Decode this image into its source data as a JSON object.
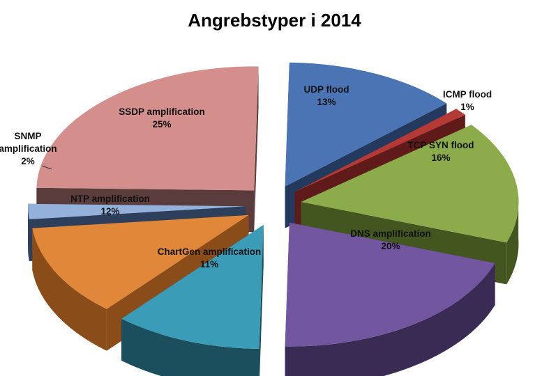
{
  "chart_data": {
    "type": "pie",
    "title": "Angrebstyper i 2014",
    "slices": [
      {
        "label": "UDP flood",
        "value": 13,
        "value_label": "13%",
        "color": "#4a74b3",
        "side_color": "#233a5e"
      },
      {
        "label": "ICMP flood",
        "value": 1,
        "value_label": "1%",
        "color": "#b53a36",
        "side_color": "#5e1b1a"
      },
      {
        "label": "TCP SYN flood",
        "value": 16,
        "value_label": "16%",
        "color": "#8cac4c",
        "side_color": "#44561f"
      },
      {
        "label": "DNS amplification",
        "value": 20,
        "value_label": "20%",
        "color": "#7256a0",
        "side_color": "#3a2b55"
      },
      {
        "label": "ChartGen amplification",
        "value": 11,
        "value_label": "11%",
        "color": "#3a9cb6",
        "side_color": "#1c4f5e"
      },
      {
        "label": "NTP amplification",
        "value": 12,
        "value_label": "12%",
        "color": "#e0873a",
        "side_color": "#8a4c18"
      },
      {
        "label": "SNMP amplification",
        "value": 2,
        "value_label": "2%",
        "color": "#93b1db",
        "side_color": "#2e3f5c"
      },
      {
        "label": "SSDP amplification",
        "value": 25,
        "value_label": "25%",
        "color": "#d48e8c",
        "side_color": "#5a3c3c"
      }
    ]
  }
}
